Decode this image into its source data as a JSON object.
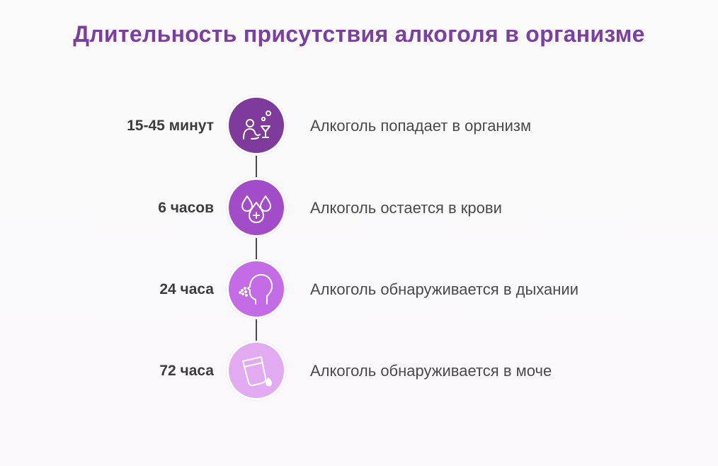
{
  "title": "Длительность присутствия алкоголя в организме",
  "colors": {
    "title": "#7a3fa0",
    "step1": "#7e3b9c",
    "step2": "#a24cc8",
    "step3": "#c36ce6",
    "step4": "#e2aaf0"
  },
  "steps": [
    {
      "time": "15-45 минут",
      "description": "Алкоголь попадает в организм",
      "icon": "person-drinking-icon"
    },
    {
      "time": "6 часов",
      "description": "Алкоголь остается в крови",
      "icon": "blood-drops-icon"
    },
    {
      "time": "24 часа",
      "description": "Алкоголь обнаруживается в дыхании",
      "icon": "breath-icon"
    },
    {
      "time": "72 часа",
      "description": "Алкоголь обнаруживается в моче",
      "icon": "urine-cup-icon"
    }
  ]
}
